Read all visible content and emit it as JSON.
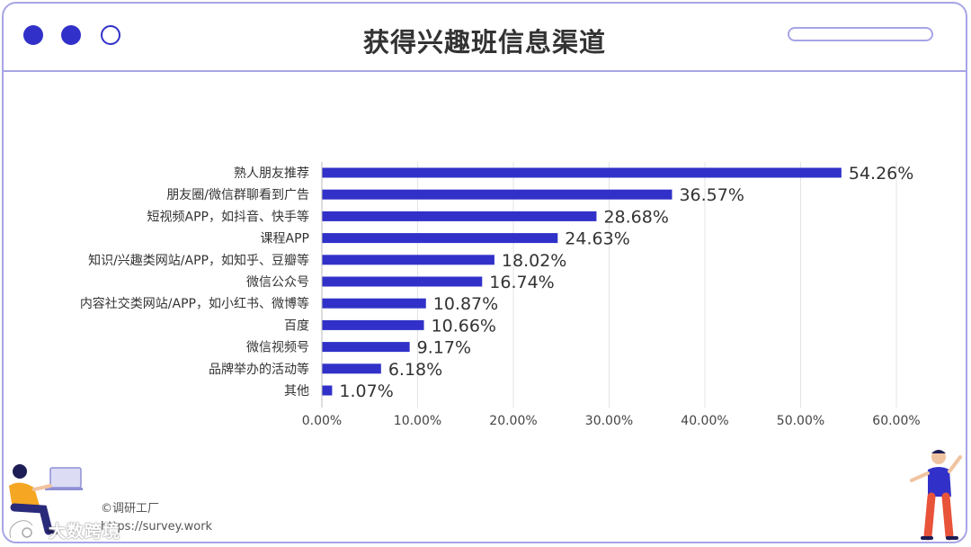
{
  "window": {
    "title": "获得兴趣班信息渠道"
  },
  "footer": {
    "credit_line1": "©调研工厂",
    "credit_line2": "https://survey.work",
    "watermark": "大数跨境"
  },
  "colors": {
    "bar": "#3131c9",
    "frame": "#a8a5e6",
    "grid": "#e3e3e3"
  },
  "chart_data": {
    "type": "bar",
    "orientation": "horizontal",
    "categories": [
      "熟人朋友推荐",
      "朋友圈/微信群聊看到广告",
      "短视频APP，如抖音、快手等",
      "课程APP",
      "知识/兴趣类网站/APP，如知乎、豆瓣等",
      "微信公众号",
      "内容社交类网站/APP，如小红书、微博等",
      "百度",
      "微信视频号",
      "品牌举办的活动等",
      "其他"
    ],
    "values": [
      54.26,
      36.57,
      28.68,
      24.63,
      18.02,
      16.74,
      10.87,
      10.66,
      9.17,
      6.18,
      1.07
    ],
    "data_labels": [
      "54.26%",
      "36.57%",
      "28.68%",
      "24.63%",
      "18.02%",
      "16.74%",
      "10.87%",
      "10.66%",
      "9.17%",
      "6.18%",
      "1.07%"
    ],
    "x_ticks": [
      0,
      10,
      20,
      30,
      40,
      50,
      60
    ],
    "x_tick_labels": [
      "0.00%",
      "10.00%",
      "20.00%",
      "30.00%",
      "40.00%",
      "50.00%",
      "60.00%"
    ],
    "xlim": [
      0,
      60
    ],
    "grid": true,
    "legend": "none"
  }
}
